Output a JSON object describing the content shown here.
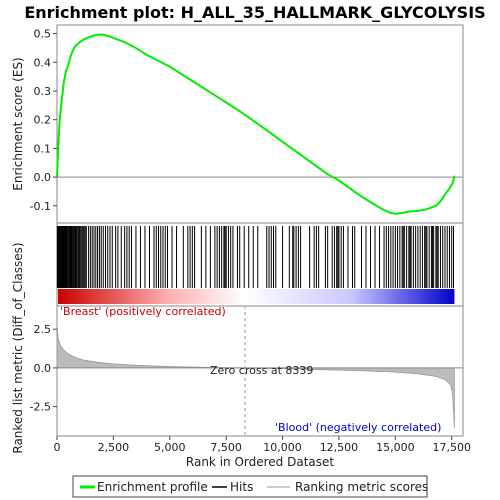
{
  "chart_data": {
    "type": "line",
    "title": "Enrichment plot: H_ALL_35_HALLMARK_GLYCOLYSIS",
    "top_panel": {
      "ylabel": "Enrichment score (ES)",
      "ylim": [
        -0.16,
        0.53
      ],
      "yticks": [
        -0.1,
        0.0,
        0.1,
        0.2,
        0.3,
        0.4,
        0.5
      ],
      "series": [
        {
          "name": "Enrichment profile",
          "color": "#00ee00",
          "x": [
            0,
            60,
            120,
            200,
            300,
            400,
            500,
            600,
            700,
            800,
            1000,
            1200,
            1400,
            1600,
            1800,
            2000,
            2200,
            2500,
            3000,
            3500,
            4000,
            4500,
            5000,
            5500,
            6000,
            6500,
            7000,
            7500,
            8000,
            8500,
            9000,
            9500,
            10000,
            10500,
            11000,
            11500,
            12000,
            12500,
            13000,
            13500,
            14000,
            14500,
            14800,
            15000,
            15300,
            15600,
            16000,
            16400,
            16800,
            17000,
            17200,
            17400,
            17550,
            17620
          ],
          "y": [
            0.0,
            0.12,
            0.2,
            0.26,
            0.33,
            0.37,
            0.39,
            0.42,
            0.44,
            0.455,
            0.47,
            0.48,
            0.487,
            0.492,
            0.496,
            0.497,
            0.493,
            0.485,
            0.47,
            0.45,
            0.425,
            0.405,
            0.385,
            0.36,
            0.335,
            0.31,
            0.285,
            0.26,
            0.235,
            0.208,
            0.18,
            0.152,
            0.123,
            0.095,
            0.066,
            0.038,
            0.01,
            -0.012,
            -0.04,
            -0.068,
            -0.092,
            -0.115,
            -0.125,
            -0.128,
            -0.125,
            -0.12,
            -0.118,
            -0.112,
            -0.1,
            -0.085,
            -0.06,
            -0.04,
            -0.02,
            0.005
          ]
        }
      ]
    },
    "hits": {
      "name": "Hits",
      "color": "#000000",
      "positions": [
        15,
        40,
        70,
        100,
        130,
        160,
        190,
        220,
        250,
        280,
        310,
        340,
        370,
        400,
        430,
        460,
        500,
        540,
        580,
        620,
        660,
        700,
        740,
        780,
        820,
        860,
        900,
        950,
        1000,
        1050,
        1100,
        1150,
        1200,
        1250,
        1300,
        1400,
        1480,
        1560,
        1640,
        1720,
        1800,
        1880,
        1960,
        2050,
        2150,
        2250,
        2350,
        2450,
        2600,
        2700,
        2850,
        3000,
        3100,
        3200,
        3300,
        3500,
        3700,
        3900,
        4100,
        4300,
        4400,
        4500,
        4600,
        4700,
        4800,
        4900,
        5100,
        5300,
        5600,
        5800,
        5900,
        6000,
        6100,
        6400,
        6600,
        6800,
        7000,
        7100,
        7200,
        7300,
        7400,
        7450,
        7500,
        7600,
        7700,
        7800,
        8000,
        8100,
        8300,
        8500,
        8700,
        8900,
        9300,
        9400,
        9500,
        9600,
        9700,
        10000,
        10300,
        10450,
        10500,
        10600,
        10700,
        10800,
        11200,
        11400,
        11500,
        11600,
        11900,
        12000,
        12200,
        12300,
        12400,
        12450,
        12500,
        12600,
        12700,
        12900,
        13100,
        13200,
        13500,
        13700,
        13900,
        14100,
        14300,
        14500,
        14600,
        14700,
        14800,
        14900,
        15000,
        15100,
        15200,
        15300,
        15350,
        15400,
        15500,
        15600,
        15650,
        15700,
        15800,
        15900,
        16000,
        16100,
        16200,
        16300,
        16350,
        16400,
        16500,
        16600,
        16650,
        16700,
        16800,
        16850,
        16900,
        17000,
        17100,
        17200,
        17300,
        17400,
        17500,
        17580
      ]
    },
    "bottom_panel": {
      "ylabel": "Ranked list metric (Diff_of_Classes)",
      "xlabel": "Rank in Ordered Dataset",
      "xlim": [
        0,
        18000
      ],
      "xticks": [
        0,
        2500,
        5000,
        7500,
        10000,
        12500,
        15000,
        17500
      ],
      "ylim": [
        -4.4,
        4.0
      ],
      "yticks": [
        -2.5,
        0.0,
        2.5
      ],
      "series": [
        {
          "name": "Ranking metric scores",
          "color": "#bbbbbb",
          "x": [
            0,
            50,
            150,
            300,
            500,
            800,
            1200,
            1800,
            2500,
            3500,
            5000,
            6500,
            8339,
            10000,
            12000,
            13500,
            15000,
            16000,
            16800,
            17200,
            17450,
            17550,
            17620
          ],
          "y": [
            2.9,
            1.9,
            1.45,
            1.15,
            0.9,
            0.68,
            0.5,
            0.36,
            0.26,
            0.17,
            0.09,
            0.04,
            0.0,
            -0.05,
            -0.12,
            -0.18,
            -0.27,
            -0.38,
            -0.55,
            -0.75,
            -1.1,
            -1.8,
            -3.9
          ]
        }
      ]
    },
    "zero_cross_label": "Zero cross at 8339",
    "zero_cross_x": 8339,
    "positive_label": "'Breast' (positively correlated)",
    "negative_label": "'Blood' (negatively correlated)",
    "positive_color": "#cc0000",
    "negative_color": "#0000cc",
    "legend": {
      "placement": "bottom",
      "items": [
        {
          "label": "Enrichment profile",
          "color": "#00ee00"
        },
        {
          "label": "Hits",
          "color": "#000000"
        },
        {
          "label": "Ranking metric scores",
          "color": "#bbbbbb"
        }
      ]
    }
  }
}
